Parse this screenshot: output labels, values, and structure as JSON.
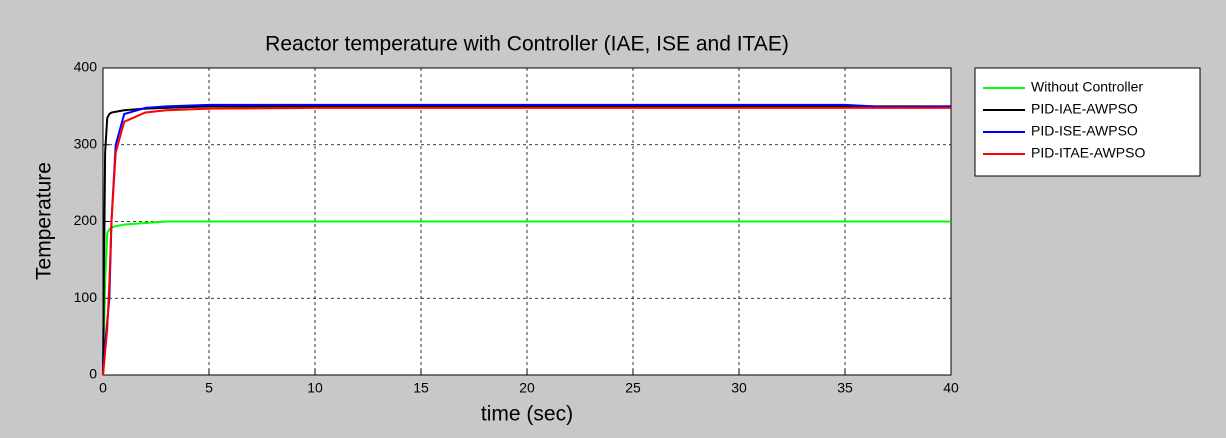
{
  "chart_data": {
    "type": "line",
    "title": "Reactor temperature with Controller (IAE, ISE and ITAE)",
    "xlabel": "time (sec)",
    "ylabel": "Temperature",
    "x": [
      0,
      0.1,
      0.2,
      0.3,
      0.4,
      0.6,
      1,
      2,
      3,
      5,
      10,
      20,
      30,
      35,
      37,
      40
    ],
    "series": [
      {
        "name": "Without Controller",
        "color": "#00ff00",
        "values": [
          0,
          120,
          185,
          190,
          192,
          194,
          196,
          198,
          200,
          200,
          200,
          200,
          200,
          200,
          200,
          200
        ]
      },
      {
        "name": "PID-IAE-AWPSO",
        "color": "#000000",
        "values": [
          0,
          290,
          335,
          340,
          342,
          343,
          345,
          347,
          348,
          350,
          350,
          350,
          350,
          350,
          350,
          350
        ]
      },
      {
        "name": "PID-ISE-AWPSO",
        "color": "#0000ff",
        "values": [
          0,
          40,
          70,
          100,
          200,
          300,
          340,
          348,
          350,
          352,
          352,
          352,
          352,
          352,
          349,
          350
        ]
      },
      {
        "name": "PID-ITAE-AWPSO",
        "color": "#ff0000",
        "values": [
          0,
          30,
          60,
          120,
          200,
          290,
          330,
          342,
          345,
          347,
          348,
          348,
          348,
          348,
          348,
          348
        ]
      }
    ],
    "xlim": [
      0,
      40
    ],
    "xticks": [
      0,
      5,
      10,
      15,
      20,
      25,
      30,
      35,
      40
    ],
    "ylim": [
      0,
      400
    ],
    "yticks": [
      0,
      100,
      200,
      300,
      400
    ],
    "grid": true,
    "legend_position": "outside right"
  }
}
